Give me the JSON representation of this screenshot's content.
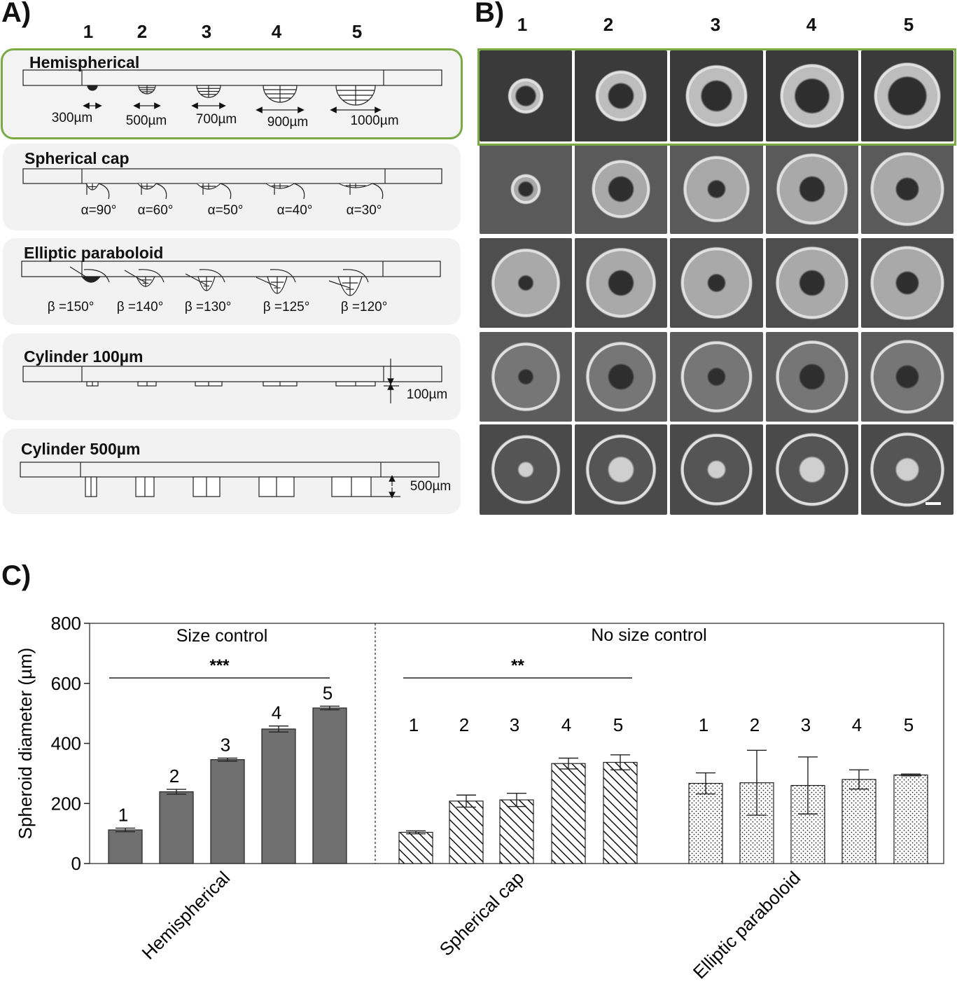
{
  "panels": {
    "a": "A)",
    "b": "B)",
    "c": "C)"
  },
  "column_numbers": [
    "1",
    "2",
    "3",
    "4",
    "5"
  ],
  "geometries": [
    {
      "title": "Hemispherical",
      "labels": [
        "300µm",
        "500µm",
        "700µm",
        "900µm",
        "1000µm"
      ]
    },
    {
      "title": "Spherical cap",
      "labels": [
        "α=90°",
        "α=60°",
        "α=50°",
        "α=40°",
        "α=30°"
      ]
    },
    {
      "title": "Elliptic paraboloid",
      "labels": [
        "β =150°",
        "β =140°",
        "β =130°",
        "β =125°",
        "β =120°"
      ]
    },
    {
      "title": "Cylinder 100µm",
      "labels": [],
      "depth_label": "100µm"
    },
    {
      "title": "Cylinder 500µm",
      "labels": [],
      "depth_label": "500µm"
    }
  ],
  "colors": {
    "highlight": "#7aaa45",
    "solid_bar": "#6f6f6f",
    "box_bg": "#f2f2f2"
  },
  "chart_data": {
    "type": "bar",
    "xlabel": "",
    "ylabel": "Spheroid diameter (µm)",
    "ylim": [
      0,
      800
    ],
    "yticks": [
      0,
      200,
      400,
      600,
      800
    ],
    "categories": [
      "1",
      "2",
      "3",
      "4",
      "5"
    ],
    "regions": [
      {
        "label": "Size control",
        "groups": [
          "Hemispherical"
        ]
      },
      {
        "label": "No  size control",
        "groups": [
          "Spherical cap",
          "Elliptic paraboloid"
        ]
      }
    ],
    "series": [
      {
        "name": "Hemispherical",
        "pattern": "solid",
        "values": [
          112,
          239,
          346,
          448,
          518
        ],
        "errors": [
          6,
          8,
          5,
          10,
          6
        ],
        "significance": "***"
      },
      {
        "name": "Spherical cap",
        "pattern": "hatched",
        "values": [
          104,
          208,
          212,
          333,
          337
        ],
        "errors": [
          5,
          20,
          22,
          18,
          25
        ],
        "significance": "**"
      },
      {
        "name": "Elliptic paraboloid",
        "pattern": "dotted",
        "values": [
          267,
          269,
          260,
          280,
          295
        ],
        "errors": [
          35,
          108,
          95,
          32,
          3
        ],
        "significance": ""
      }
    ]
  }
}
